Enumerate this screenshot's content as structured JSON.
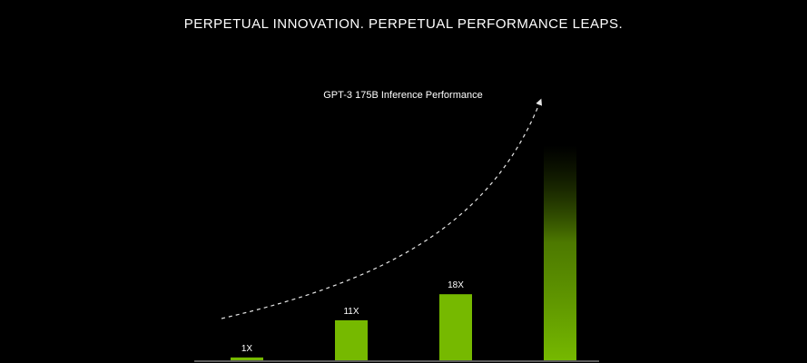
{
  "page": {
    "headline": "PERPETUAL INNOVATION. PERPETUAL PERFORMANCE LEAPS."
  },
  "colors": {
    "background": "#000000",
    "bar": "#76b900",
    "text": "#ffffff",
    "trend": "#ffffff",
    "baseline": "#5a5a5a"
  },
  "chart_data": {
    "type": "bar",
    "title": "GPT-3 175B Inference Performance",
    "categories": [
      "",
      "",
      "",
      ""
    ],
    "values": [
      1,
      11,
      18,
      58
    ],
    "data_labels": [
      "1X",
      "11X",
      "18X",
      ""
    ],
    "last_bar_fade": true,
    "trend_arrow": true,
    "ylim": [
      0,
      60
    ],
    "grid": false,
    "xlabel": "",
    "ylabel": ""
  }
}
